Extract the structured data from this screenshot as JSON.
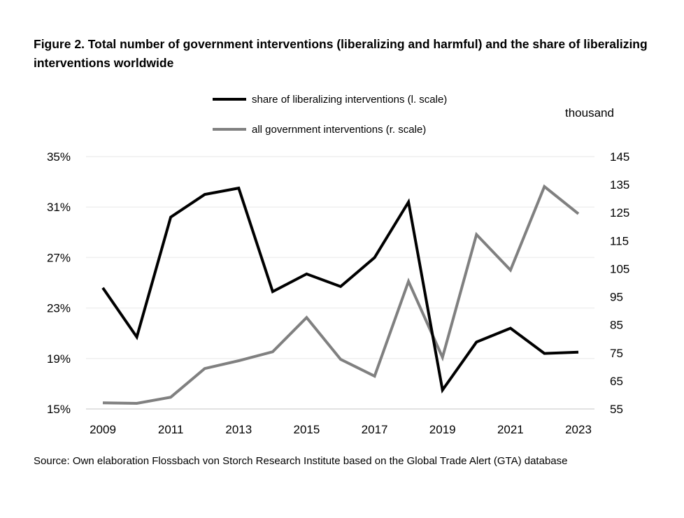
{
  "title": "Figure 2. Total number of government interventions (liberalizing and harmful) and the share of liberalizing interventions worldwide",
  "source": "Source: Own elaboration Flossbach von Storch Research Institute based on the Global Trade Alert (GTA) database",
  "chart_data": {
    "type": "line",
    "x": [
      2009,
      2010,
      2011,
      2012,
      2013,
      2014,
      2015,
      2016,
      2017,
      2018,
      2019,
      2020,
      2021,
      2022,
      2023
    ],
    "x_tick_labels": [
      "2009",
      "2011",
      "2013",
      "2015",
      "2017",
      "2019",
      "2021",
      "2023"
    ],
    "left_axis": {
      "range": [
        15,
        35
      ],
      "tick_labels": [
        "15%",
        "19%",
        "23%",
        "27%",
        "31%",
        "35%"
      ],
      "ticks": [
        15,
        19,
        23,
        27,
        31,
        35
      ]
    },
    "right_axis": {
      "unit_label": "thousand",
      "range": [
        55,
        145
      ],
      "tick_labels": [
        "55",
        "65",
        "75",
        "85",
        "95",
        "105",
        "115",
        "125",
        "135",
        "145"
      ],
      "ticks": [
        55,
        65,
        75,
        85,
        95,
        105,
        115,
        125,
        135,
        145
      ]
    },
    "grid": true,
    "legend_position": "top",
    "series": [
      {
        "name": "share of liberalizing interventions (l. scale)",
        "axis": "left",
        "color": "#000000",
        "values": [
          24.6,
          20.7,
          30.2,
          32.0,
          32.5,
          24.3,
          25.7,
          24.7,
          27.0,
          31.4,
          16.5,
          20.3,
          21.4,
          19.4,
          19.5
        ]
      },
      {
        "name": "all government interventions (r. scale)",
        "axis": "right",
        "color": "#808080",
        "values": [
          57.2,
          57.0,
          59.2,
          69.4,
          72.2,
          75.4,
          87.6,
          72.7,
          66.7,
          100.5,
          73.4,
          117.2,
          104.5,
          134.3,
          124.6
        ]
      }
    ]
  }
}
